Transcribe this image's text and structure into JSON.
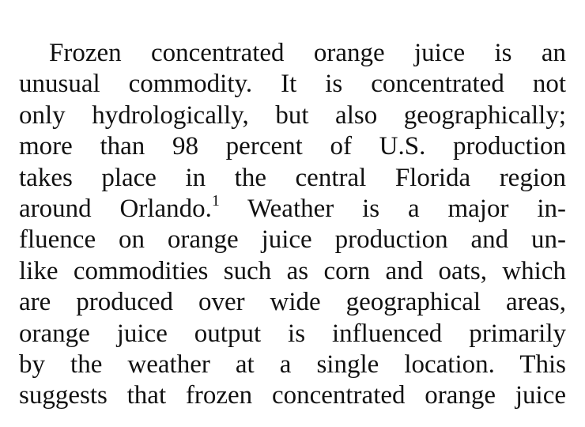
{
  "document": {
    "lines": [
      "Frozen concentrated orange juice is an",
      "unusual commodity. It is concentrated not",
      "only hydrologically, but also geographically;",
      "more than 98 percent of U.S. production",
      "takes place in the central Florida region",
      "Weather is a major in-",
      "fluence on orange juice production and un-",
      "like commodities such as corn and oats, which",
      "are produced over wide geographical areas,",
      "orange juice output is influenced primarily",
      "by the weather at a single location. This",
      "suggests that frozen concentrated orange juice"
    ],
    "line6_prefix": "around Orlando.",
    "footnote_marker": "1"
  }
}
